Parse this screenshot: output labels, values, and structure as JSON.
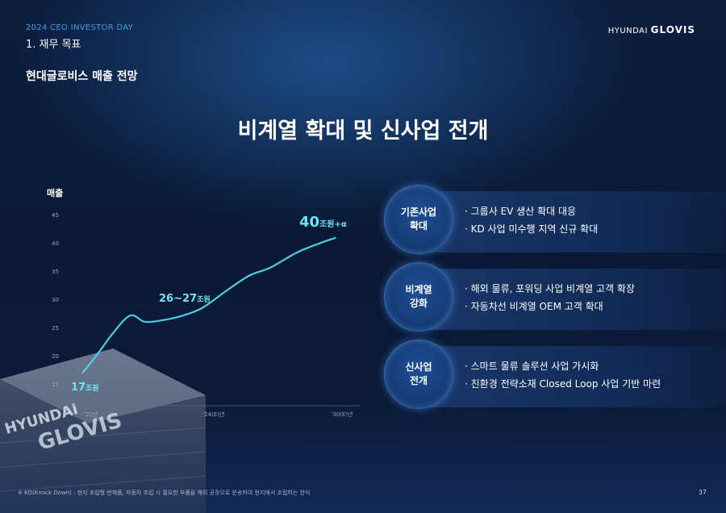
{
  "header": {
    "kicker": "2024 CEO INVESTOR DAY",
    "section": "1. 재무 목표",
    "subtitle": "현대글로비스 매출 전망",
    "logo_small": "HYUNDAI",
    "logo_big": "GLOVIS"
  },
  "headline": "비계열 확대 및 신사업 전개",
  "chart_data": {
    "type": "line",
    "ylabel": "매출",
    "ylim": [
      15,
      45
    ],
    "yticks": [
      15,
      20,
      25,
      30,
      35,
      40,
      45
    ],
    "xticks": [
      "'20년",
      "'24(E)년",
      "'30(E)년"
    ],
    "series": [
      {
        "values": [
          {
            "x": 0,
            "y": 16.9
          },
          {
            "x": 0.5,
            "y": 20.2
          },
          {
            "x": 1.0,
            "y": 23.8
          },
          {
            "x": 1.6,
            "y": 27.1
          },
          {
            "x": 2.1,
            "y": 26.0
          },
          {
            "x": 2.7,
            "y": 26.3
          },
          {
            "x": 3.3,
            "y": 27.0
          },
          {
            "x": 4.0,
            "y": 28.4
          },
          {
            "x": 4.8,
            "y": 31.4
          },
          {
            "x": 5.6,
            "y": 34.2
          },
          {
            "x": 6.3,
            "y": 35.6
          },
          {
            "x": 7.2,
            "y": 38.3
          },
          {
            "x": 8.0,
            "y": 40.0
          },
          {
            "x": 8.5,
            "y": 40.9
          }
        ]
      }
    ],
    "annotations": [
      {
        "num": "17",
        "unit": "조원"
      },
      {
        "num": "26~27",
        "unit": "조원"
      },
      {
        "num": "40",
        "unit": "조원+α"
      }
    ]
  },
  "strategies": [
    {
      "label_line1": "기존사업",
      "label_line2": "확대",
      "bullets": [
        "· 그룹사 EV 생산 확대 대응",
        "· KD 사업 미수행 지역 신규 확대"
      ]
    },
    {
      "label_line1": "비계열",
      "label_line2": "강화",
      "bullets": [
        "· 해외 물류, 포워딩 사업 비계열 고객 확장",
        "· 자동차선 비계열 OEM 고객 확대"
      ]
    },
    {
      "label_line1": "신사업",
      "label_line2": "전개",
      "bullets": [
        "· 스마트 물류 솔루션 사업 가시화",
        "· 친환경 전략소재 Closed Loop 사업 기반 마련"
      ]
    }
  ],
  "footnote": "※ KD(Knock Down) : 현지 조립형 반제품, 자동차 조립 시 필요한 부품을 해외 공장으로 운송하여 현지에서 조립하는 방식",
  "page_number": "37",
  "colors": {
    "accent": "#3da0e8",
    "line": "#4fd7ef",
    "annotation": "#6fe2f5"
  }
}
